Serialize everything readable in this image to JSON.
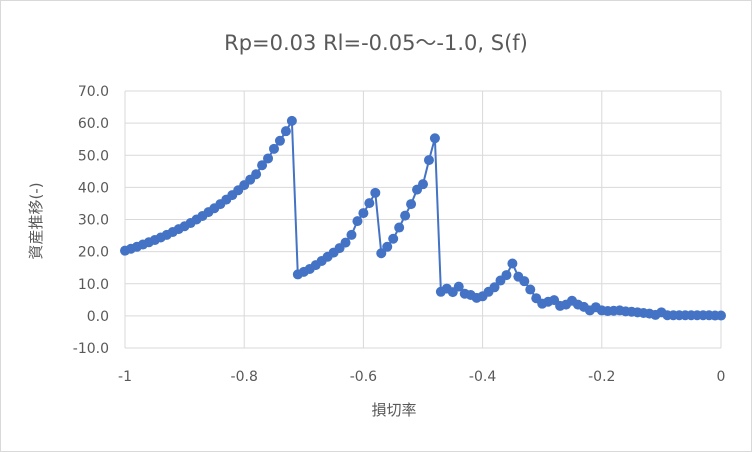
{
  "chart_data": {
    "type": "line",
    "title": "Rp=0.03 Rl=-0.05～-1.0, S(f)",
    "xlabel": "損切率",
    "ylabel": "資産推移(-)",
    "xlim": [
      -1,
      0
    ],
    "ylim": [
      -10,
      70
    ],
    "x_ticks": [
      "-1",
      "-0.8",
      "-0.6",
      "-0.4",
      "-0.2",
      "0"
    ],
    "y_ticks": [
      "70.0",
      "60.0",
      "50.0",
      "40.0",
      "30.0",
      "20.0",
      "10.0",
      "0.0",
      "-10.0"
    ],
    "grid": true,
    "legend": "none",
    "series_color": "#4472c4",
    "marker": "circle",
    "x": [
      -1.0,
      -0.99,
      -0.98,
      -0.97,
      -0.96,
      -0.95,
      -0.94,
      -0.93,
      -0.92,
      -0.91,
      -0.9,
      -0.89,
      -0.88,
      -0.87,
      -0.86,
      -0.85,
      -0.84,
      -0.83,
      -0.82,
      -0.81,
      -0.8,
      -0.79,
      -0.78,
      -0.77,
      -0.76,
      -0.75,
      -0.74,
      -0.73,
      -0.72,
      -0.71,
      -0.7,
      -0.69,
      -0.68,
      -0.67,
      -0.66,
      -0.65,
      -0.64,
      -0.63,
      -0.62,
      -0.61,
      -0.6,
      -0.59,
      -0.58,
      -0.57,
      -0.56,
      -0.55,
      -0.54,
      -0.53,
      -0.52,
      -0.51,
      -0.5,
      -0.49,
      -0.48,
      -0.47,
      -0.46,
      -0.45,
      -0.44,
      -0.43,
      -0.42,
      -0.41,
      -0.4,
      -0.39,
      -0.38,
      -0.37,
      -0.36,
      -0.35,
      -0.34,
      -0.33,
      -0.32,
      -0.31,
      -0.3,
      -0.29,
      -0.28,
      -0.27,
      -0.26,
      -0.25,
      -0.24,
      -0.23,
      -0.22,
      -0.21,
      -0.2,
      -0.19,
      -0.18,
      -0.17,
      -0.16,
      -0.15,
      -0.14,
      -0.13,
      -0.12,
      -0.11,
      -0.1,
      -0.09,
      -0.08,
      -0.07,
      -0.06,
      -0.05,
      -0.04,
      -0.03,
      -0.02,
      -0.01,
      0.0
    ],
    "values": [
      20.3,
      20.9,
      21.5,
      22.2,
      22.9,
      23.6,
      24.4,
      25.2,
      26.1,
      27.0,
      27.9,
      28.9,
      30.0,
      31.1,
      32.3,
      33.5,
      34.8,
      36.2,
      37.6,
      39.1,
      40.7,
      42.4,
      44.1,
      46.9,
      49.0,
      52.0,
      54.5,
      57.5,
      60.7,
      12.9,
      13.7,
      14.6,
      15.8,
      17.1,
      18.4,
      19.7,
      21.1,
      22.8,
      25.2,
      29.5,
      32.0,
      35.1,
      38.3,
      19.5,
      21.5,
      24.0,
      27.5,
      31.2,
      34.8,
      39.3,
      41.0,
      48.5,
      55.3,
      7.5,
      8.5,
      7.4,
      9.1,
      6.9,
      6.5,
      5.6,
      6.1,
      7.5,
      8.9,
      11.0,
      12.7,
      16.3,
      12.2,
      10.8,
      8.2,
      5.5,
      3.8,
      4.4,
      4.9,
      3.1,
      3.5,
      4.7,
      3.5,
      2.8,
      1.7,
      2.7,
      1.7,
      1.5,
      1.6,
      1.7,
      1.4,
      1.3,
      1.1,
      0.9,
      0.7,
      0.3,
      1.1,
      0.2,
      0.2,
      0.2,
      0.2,
      0.2,
      0.2,
      0.2,
      0.2,
      0.1,
      0.1
    ]
  }
}
